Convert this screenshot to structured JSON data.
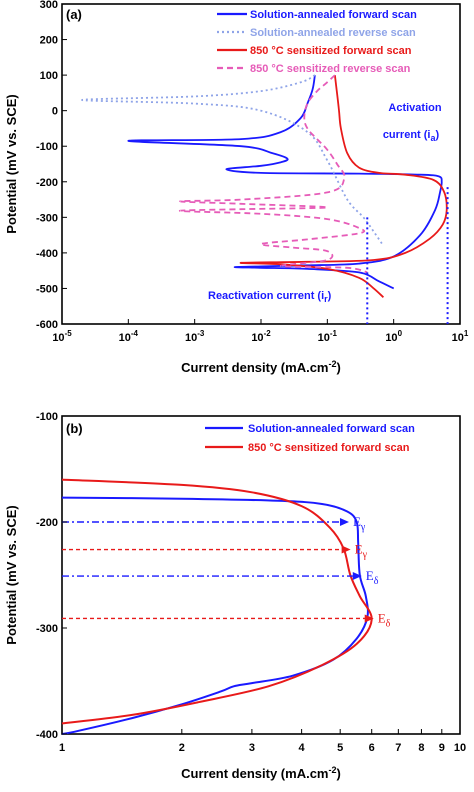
{
  "chart_data": [
    {
      "type": "line",
      "panel_label": "(a)",
      "xlabel": "Current density (mA.cm",
      "xlabel_sup": "-2",
      "xlabel_end": ")",
      "ylabel": "Potential (mV vs. SCE)",
      "xscale": "log",
      "xlim": [
        1e-05,
        10
      ],
      "ylim": [
        -600,
        300
      ],
      "x_ticks": [
        {
          "b": "10",
          "e": "-5"
        },
        {
          "b": "10",
          "e": "-4"
        },
        {
          "b": "10",
          "e": "-3"
        },
        {
          "b": "10",
          "e": "-2"
        },
        {
          "b": "10",
          "e": "-1"
        },
        {
          "b": "10",
          "e": "0"
        },
        {
          "b": "10",
          "e": "1"
        }
      ],
      "y_ticks": [
        "300",
        "200",
        "100",
        "0",
        "-100",
        "-200",
        "-300",
        "-400",
        "-500",
        "-600"
      ],
      "legend": [
        {
          "label": "Solution-annealed forward scan",
          "color": "#1a1aff",
          "style": "solid"
        },
        {
          "label": "Solution-annealed reverse scan",
          "color": "#8fa4e8",
          "style": "dotted"
        },
        {
          "label": "850 °C sensitized forward scan",
          "color": "#e81a1a",
          "style": "solid"
        },
        {
          "label": "850 °C sensitized reverse scan",
          "color": "#e65cb8",
          "style": "dashed"
        }
      ],
      "annotations": {
        "activation_1": "Activation",
        "activation_2": "current (i",
        "activation_sub": "a",
        "reactivation": "Reactivation  current (i",
        "reactivation_sub": "r",
        "close": ")"
      },
      "markers": {
        "ir_x": 0.4,
        "ia_x": 6.5
      },
      "series": [
        {
          "name": "Solution-annealed forward scan",
          "color": "#1a1aff",
          "style": "solid",
          "points": [
            [
              1.0,
              -500
            ],
            [
              0.6,
              -480
            ],
            [
              0.3,
              -455
            ],
            [
              0.05,
              -445
            ],
            [
              0.01,
              -442
            ],
            [
              0.004,
              -440
            ],
            [
              0.01,
              -438
            ],
            [
              0.05,
              -435
            ],
            [
              0.3,
              -430
            ],
            [
              1.0,
              -410
            ],
            [
              2.5,
              -350
            ],
            [
              4.2,
              -280
            ],
            [
              5.0,
              -230
            ],
            [
              5.3,
              -200
            ],
            [
              4.8,
              -185
            ],
            [
              2.5,
              -180
            ],
            [
              0.3,
              -177
            ],
            [
              0.01,
              -175
            ],
            [
              0.003,
              -165
            ],
            [
              0.01,
              -155
            ],
            [
              0.02,
              -145
            ],
            [
              0.025,
              -135
            ],
            [
              0.015,
              -120
            ],
            [
              0.005,
              -100
            ],
            [
              0.0001,
              -85
            ],
            [
              0.005,
              -80
            ],
            [
              0.02,
              -60
            ],
            [
              0.04,
              -20
            ],
            [
              0.05,
              20
            ],
            [
              0.06,
              60
            ],
            [
              0.065,
              100
            ]
          ]
        },
        {
          "name": "Solution-annealed reverse scan",
          "color": "#8fa4e8",
          "style": "dotted",
          "points": [
            [
              0.065,
              100
            ],
            [
              0.04,
              80
            ],
            [
              0.01,
              55
            ],
            [
              0.001,
              40
            ],
            [
              2e-05,
              30
            ],
            [
              0.001,
              20
            ],
            [
              0.01,
              0
            ],
            [
              0.05,
              -60
            ],
            [
              0.1,
              -140
            ],
            [
              0.2,
              -250
            ],
            [
              0.35,
              -300
            ],
            [
              0.5,
              -340
            ],
            [
              0.7,
              -380
            ]
          ]
        },
        {
          "name": "850 °C sensitized forward scan",
          "color": "#e81a1a",
          "style": "solid",
          "points": [
            [
              0.7,
              -525
            ],
            [
              0.5,
              -500
            ],
            [
              0.3,
              -470
            ],
            [
              0.1,
              -445
            ],
            [
              0.02,
              -432
            ],
            [
              0.005,
              -428
            ],
            [
              0.05,
              -425
            ],
            [
              0.5,
              -420
            ],
            [
              1.5,
              -400
            ],
            [
              3.5,
              -360
            ],
            [
              5.5,
              -320
            ],
            [
              6.3,
              -280
            ],
            [
              5.8,
              -230
            ],
            [
              4.0,
              -195
            ],
            [
              1.5,
              -180
            ],
            [
              0.6,
              -175
            ],
            [
              0.3,
              -160
            ],
            [
              0.2,
              -120
            ],
            [
              0.16,
              -50
            ],
            [
              0.15,
              0
            ],
            [
              0.14,
              50
            ],
            [
              0.13,
              100
            ]
          ]
        },
        {
          "name": "850 °C sensitized reverse scan",
          "color": "#e65cb8",
          "style": "dashed",
          "points": [
            [
              0.13,
              100
            ],
            [
              0.1,
              80
            ],
            [
              0.07,
              55
            ],
            [
              0.05,
              20
            ],
            [
              0.045,
              -20
            ],
            [
              0.05,
              -50
            ],
            [
              0.07,
              -80
            ],
            [
              0.1,
              -110
            ],
            [
              0.14,
              -150
            ],
            [
              0.18,
              -190
            ],
            [
              0.1,
              -230
            ],
            [
              0.005,
              -250
            ],
            [
              0.0006,
              -255
            ],
            [
              0.005,
              -262
            ],
            [
              0.1,
              -272
            ],
            [
              0.005,
              -277
            ],
            [
              0.0006,
              -282
            ],
            [
              0.01,
              -290
            ],
            [
              0.1,
              -305
            ],
            [
              0.3,
              -330
            ],
            [
              0.3,
              -345
            ],
            [
              0.05,
              -362
            ],
            [
              0.01,
              -375
            ],
            [
              0.03,
              -385
            ],
            [
              0.1,
              -395
            ],
            [
              0.1,
              -420
            ],
            [
              0.02,
              -437
            ],
            [
              0.2,
              -442
            ],
            [
              0.4,
              -455
            ]
          ]
        }
      ]
    },
    {
      "type": "line",
      "panel_label": "(b)",
      "xlabel": "Current density (mA.cm",
      "xlabel_sup": "-2",
      "xlabel_end": ")",
      "ylabel": "Potential (mV vs. SCE)",
      "xscale": "log",
      "xlim": [
        1,
        10
      ],
      "ylim": [
        -400,
        -100
      ],
      "x_ticks": [
        "1",
        "2",
        "3",
        "4",
        "5",
        "6",
        "7",
        "8",
        "9",
        "10"
      ],
      "y_ticks": [
        "-100",
        "-200",
        "-300",
        "-400"
      ],
      "legend": [
        {
          "label": "Solution-annealed forward scan",
          "color": "#1a1aff",
          "style": "solid"
        },
        {
          "label": "850 °C sensitized forward scan",
          "color": "#e81a1a",
          "style": "solid"
        }
      ],
      "markers": [
        {
          "label": "E",
          "sub": "γ",
          "y": -200,
          "x_end": 5.2,
          "color": "#1a1aff"
        },
        {
          "label": "E",
          "sub": "γ",
          "y": -226,
          "x_end": 5.25,
          "color": "#e81a1a"
        },
        {
          "label": "E",
          "sub": "δ",
          "y": -251,
          "x_end": 5.6,
          "color": "#1a1aff"
        },
        {
          "label": "E",
          "sub": "δ",
          "y": -291,
          "x_end": 6.0,
          "color": "#e81a1a"
        }
      ],
      "series": [
        {
          "name": "Solution-annealed forward scan",
          "color": "#1a1aff",
          "points": [
            [
              1.0,
              -177
            ],
            [
              2.0,
              -178
            ],
            [
              3.5,
              -180
            ],
            [
              4.5,
              -183
            ],
            [
              5.2,
              -190
            ],
            [
              5.5,
              -200
            ],
            [
              5.55,
              -220
            ],
            [
              5.6,
              -250
            ],
            [
              5.8,
              -270
            ],
            [
              5.85,
              -290
            ],
            [
              5.5,
              -310
            ],
            [
              4.8,
              -330
            ],
            [
              3.8,
              -345
            ],
            [
              3.0,
              -352
            ],
            [
              2.7,
              -355
            ],
            [
              2.5,
              -360
            ],
            [
              2.0,
              -372
            ],
            [
              1.5,
              -385
            ],
            [
              1.1,
              -397
            ],
            [
              1.0,
              -400
            ]
          ]
        },
        {
          "name": "850 °C sensitized forward scan",
          "color": "#e81a1a",
          "points": [
            [
              1.0,
              -160
            ],
            [
              2.0,
              -165
            ],
            [
              3.0,
              -172
            ],
            [
              4.0,
              -185
            ],
            [
              4.7,
              -205
            ],
            [
              5.1,
              -225
            ],
            [
              5.3,
              -250
            ],
            [
              5.6,
              -270
            ],
            [
              6.0,
              -292
            ],
            [
              5.5,
              -315
            ],
            [
              4.5,
              -335
            ],
            [
              3.3,
              -355
            ],
            [
              2.2,
              -370
            ],
            [
              1.5,
              -382
            ],
            [
              1.0,
              -390
            ]
          ]
        }
      ]
    }
  ]
}
